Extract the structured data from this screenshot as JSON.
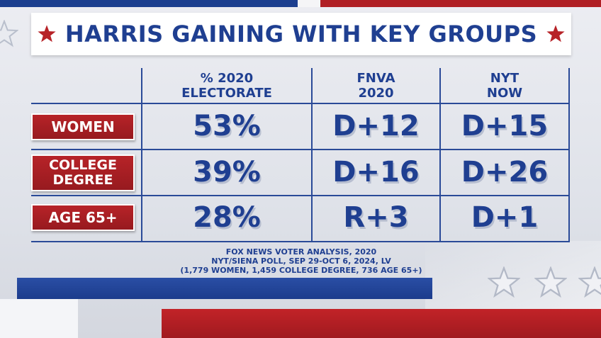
{
  "title": "HARRIS GAINING WITH KEY GROUPS",
  "columns": [
    {
      "line1": "% 2020",
      "line2": "ELECTORATE"
    },
    {
      "line1": "FNVA",
      "line2": "2020"
    },
    {
      "line1": "NYT",
      "line2": "NOW"
    }
  ],
  "rows": [
    {
      "label_line1": "WOMEN",
      "label_line2": "",
      "values": [
        "53%",
        "D+12",
        "D+15"
      ]
    },
    {
      "label_line1": "COLLEGE",
      "label_line2": "DEGREE",
      "values": [
        "39%",
        "D+16",
        "D+26"
      ]
    },
    {
      "label_line1": "AGE 65+",
      "label_line2": "",
      "values": [
        "28%",
        "R+3",
        "D+1"
      ]
    }
  ],
  "footnote": {
    "line1": "FOX NEWS VOTER ANALYSIS, 2020",
    "line2": "NYT/SIENA POLL, SEP 29-OCT 6, 2024, LV",
    "line3": "(1,779 WOMEN, 1,459 COLLEGE DEGREE, 736 AGE 65+)"
  },
  "colors": {
    "navy": "#1f3f91",
    "red": "#b72328",
    "white": "#ffffff"
  }
}
